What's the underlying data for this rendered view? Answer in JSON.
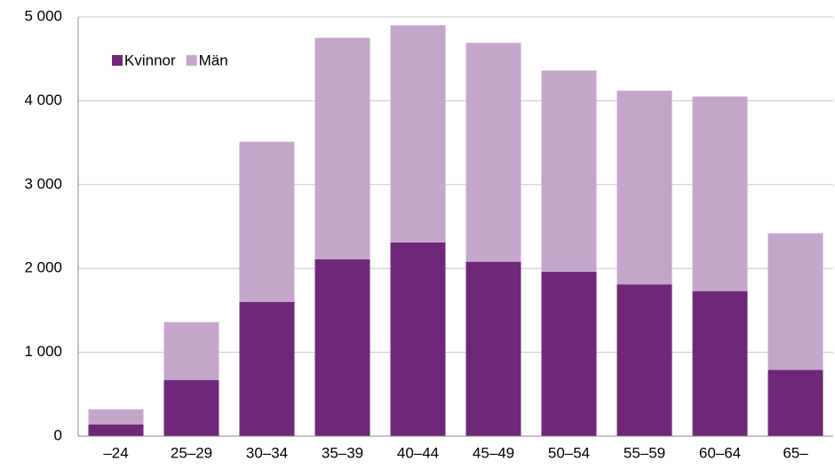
{
  "chart_data": {
    "type": "bar",
    "stacked": true,
    "categories": [
      "–24",
      "25–29",
      "30–34",
      "35–39",
      "40–44",
      "45–49",
      "50–54",
      "55–59",
      "60–64",
      "65–"
    ],
    "series": [
      {
        "name": "Kvinnor",
        "color": "#6f2878",
        "values": [
          140,
          670,
          1600,
          2110,
          2310,
          2080,
          1960,
          1810,
          1730,
          790
        ]
      },
      {
        "name": "Män",
        "color": "#c5a6cb",
        "values": [
          180,
          690,
          1910,
          2640,
          2590,
          2610,
          2400,
          2310,
          2320,
          1630
        ]
      }
    ],
    "ylim": [
      0,
      5000
    ],
    "yticks": [
      0,
      {
        "value": 1000,
        "label": "1 000"
      },
      {
        "value": 2000,
        "label": "2 000"
      },
      {
        "value": 3000,
        "label": "3 000"
      },
      {
        "value": 4000,
        "label": "4 000"
      },
      {
        "value": 5000,
        "label": "5 000"
      }
    ],
    "grid": true,
    "legend": "upper left"
  }
}
